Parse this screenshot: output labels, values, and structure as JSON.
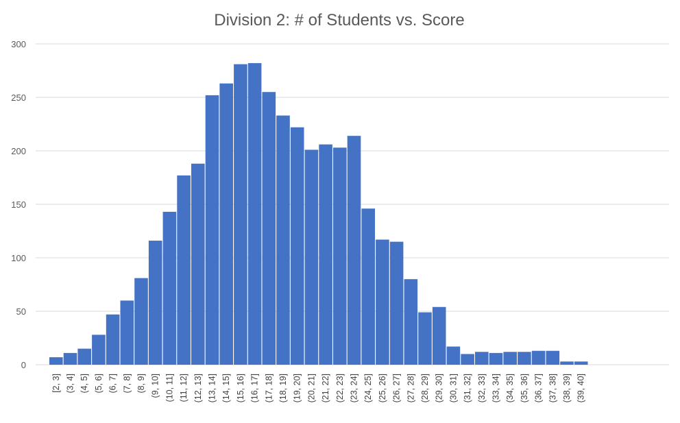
{
  "chart_data": {
    "type": "bar",
    "title": "Division 2: # of Students vs. Score",
    "xlabel": "",
    "ylabel": "",
    "ylim": [
      0,
      300
    ],
    "yticks": [
      "0",
      "50",
      "100",
      "150",
      "200",
      "250",
      "300"
    ],
    "grid": true,
    "legend": "none",
    "bar_color": "#4472C4",
    "categories": [
      "[2, 3]",
      "(3, 4]",
      "(4, 5]",
      "(5, 6]",
      "(6, 7]",
      "(7, 8]",
      "(8, 9]",
      "(9, 10]",
      "(10, 11]",
      "(11, 12]",
      "(12, 13]",
      "(13, 14]",
      "(14, 15]",
      "(15, 16]",
      "(16, 17]",
      "(17, 18]",
      "(18, 19]",
      "(19, 20]",
      "(20, 21]",
      "(21, 22]",
      "(22, 23]",
      "(23, 24]",
      "(24, 25]",
      "(25, 26]",
      "(26, 27]",
      "(27, 28]",
      "(28, 29]",
      "(29, 30]",
      "(30, 31]",
      "(31, 32]",
      "(32, 33]",
      "(33, 34]",
      "(34, 35]",
      "(35, 36]",
      "(36, 37]",
      "(37, 38]",
      "(38, 39]",
      "(39, 40]"
    ],
    "values": [
      7,
      11,
      15,
      28,
      47,
      60,
      81,
      116,
      143,
      177,
      188,
      252,
      263,
      281,
      282,
      255,
      233,
      222,
      201,
      206,
      203,
      214,
      146,
      117,
      115,
      80,
      49,
      54,
      17,
      10,
      12,
      11,
      12,
      12,
      13,
      13,
      3,
      3
    ]
  }
}
